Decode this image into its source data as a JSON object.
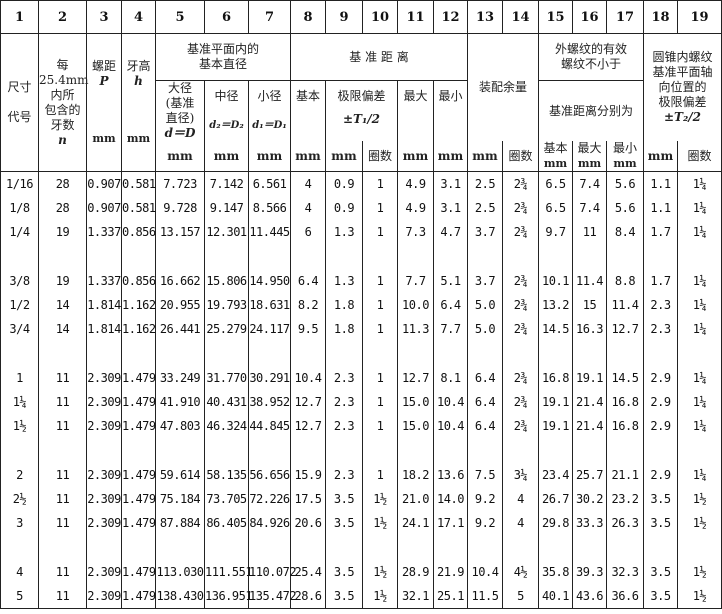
{
  "column_numbers": [
    "1",
    "2",
    "3",
    "4",
    "5",
    "6",
    "7",
    "8",
    "9",
    "10",
    "11",
    "12",
    "13",
    "14",
    "15",
    "16",
    "17",
    "18",
    "19"
  ],
  "header": {
    "size_code": "尺寸\n\n代号",
    "threads_per": "每\n25.4mm\n内所\n包含的\n牙数",
    "threads_per_sym": "n",
    "pitch": "螺距",
    "pitch_sym": "P",
    "height": "牙高",
    "height_sym": "h",
    "basic_diam_group": "基准平面内的\n基本直径",
    "major": "大径\n(基准\n直径)",
    "major_sym": "d＝D",
    "pitch_diam": "中径",
    "pitch_diam_sym": "d₂＝D₂",
    "minor": "小径",
    "minor_sym": "d₁＝D₁",
    "gauge_group": "基 准 距 离",
    "basic": "基本",
    "tolerance": "极限偏差",
    "tolerance_sym": "±T₁/2",
    "max": "最大",
    "min": "最小",
    "fitting": "装配余量",
    "ext_group": "外螺纹的有效\n螺纹不小于",
    "ext_sub": "基准距离分别为",
    "ext_basic": "基本",
    "ext_max": "最大",
    "ext_min": "最小",
    "int_group": "圆锥内螺纹\n基准平面轴\n向位置的\n极限偏差",
    "int_sym": "±T₂/2",
    "unit_mm": "mm",
    "unit_turns": "圈数"
  },
  "groups": [
    [
      [
        "1/16",
        "28",
        "0.907",
        "0.581",
        "7.723",
        "7.142",
        "6.561",
        "4",
        "0.9",
        "1",
        "4.9",
        "3.1",
        "2.5",
        "2¾",
        "6.5",
        "7.4",
        "5.6",
        "1.1",
        "1¼"
      ],
      [
        "1/8",
        "28",
        "0.907",
        "0.581",
        "9.728",
        "9.147",
        "8.566",
        "4",
        "0.9",
        "1",
        "4.9",
        "3.1",
        "2.5",
        "2¾",
        "6.5",
        "7.4",
        "5.6",
        "1.1",
        "1¼"
      ],
      [
        "1/4",
        "19",
        "1.337",
        "0.856",
        "13.157",
        "12.301",
        "11.445",
        "6",
        "1.3",
        "1",
        "7.3",
        "4.7",
        "3.7",
        "2¾",
        "9.7",
        "11",
        "8.4",
        "1.7",
        "1¼"
      ]
    ],
    [
      [
        "3/8",
        "19",
        "1.337",
        "0.856",
        "16.662",
        "15.806",
        "14.950",
        "6.4",
        "1.3",
        "1",
        "7.7",
        "5.1",
        "3.7",
        "2¾",
        "10.1",
        "11.4",
        "8.8",
        "1.7",
        "1¼"
      ],
      [
        "1/2",
        "14",
        "1.814",
        "1.162",
        "20.955",
        "19.793",
        "18.631",
        "8.2",
        "1.8",
        "1",
        "10.0",
        "6.4",
        "5.0",
        "2¾",
        "13.2",
        "15",
        "11.4",
        "2.3",
        "1¼"
      ],
      [
        "3/4",
        "14",
        "1.814",
        "1.162",
        "26.441",
        "25.279",
        "24.117",
        "9.5",
        "1.8",
        "1",
        "11.3",
        "7.7",
        "5.0",
        "2¾",
        "14.5",
        "16.3",
        "12.7",
        "2.3",
        "1¼"
      ]
    ],
    [
      [
        "1",
        "11",
        "2.309",
        "1.479",
        "33.249",
        "31.770",
        "30.291",
        "10.4",
        "2.3",
        "1",
        "12.7",
        "8.1",
        "6.4",
        "2¾",
        "16.8",
        "19.1",
        "14.5",
        "2.9",
        "1¼"
      ],
      [
        "1¼",
        "11",
        "2.309",
        "1.479",
        "41.910",
        "40.431",
        "38.952",
        "12.7",
        "2.3",
        "1",
        "15.0",
        "10.4",
        "6.4",
        "2¾",
        "19.1",
        "21.4",
        "16.8",
        "2.9",
        "1¼"
      ],
      [
        "1½",
        "11",
        "2.309",
        "1.479",
        "47.803",
        "46.324",
        "44.845",
        "12.7",
        "2.3",
        "1",
        "15.0",
        "10.4",
        "6.4",
        "2¾",
        "19.1",
        "21.4",
        "16.8",
        "2.9",
        "1¼"
      ]
    ],
    [
      [
        "2",
        "11",
        "2.309",
        "1.479",
        "59.614",
        "58.135",
        "56.656",
        "15.9",
        "2.3",
        "1",
        "18.2",
        "13.6",
        "7.5",
        "3¼",
        "23.4",
        "25.7",
        "21.1",
        "2.9",
        "1¼"
      ],
      [
        "2½",
        "11",
        "2.309",
        "1.479",
        "75.184",
        "73.705",
        "72.226",
        "17.5",
        "3.5",
        "1½",
        "21.0",
        "14.0",
        "9.2",
        "4",
        "26.7",
        "30.2",
        "23.2",
        "3.5",
        "1½"
      ],
      [
        "3",
        "11",
        "2.309",
        "1.479",
        "87.884",
        "86.405",
        "84.926",
        "20.6",
        "3.5",
        "1½",
        "24.1",
        "17.1",
        "9.2",
        "4",
        "29.8",
        "33.3",
        "26.3",
        "3.5",
        "1½"
      ]
    ],
    [
      [
        "4",
        "11",
        "2.309",
        "1.479",
        "113.030",
        "111.551",
        "110.072",
        "25.4",
        "3.5",
        "1½",
        "28.9",
        "21.9",
        "10.4",
        "4½",
        "35.8",
        "39.3",
        "32.3",
        "3.5",
        "1½"
      ],
      [
        "5",
        "11",
        "2.309",
        "1.479",
        "138.430",
        "136.951",
        "135.472",
        "28.6",
        "3.5",
        "1½",
        "32.1",
        "25.1",
        "11.5",
        "5",
        "40.1",
        "43.6",
        "36.6",
        "3.5",
        "1½"
      ]
    ]
  ]
}
